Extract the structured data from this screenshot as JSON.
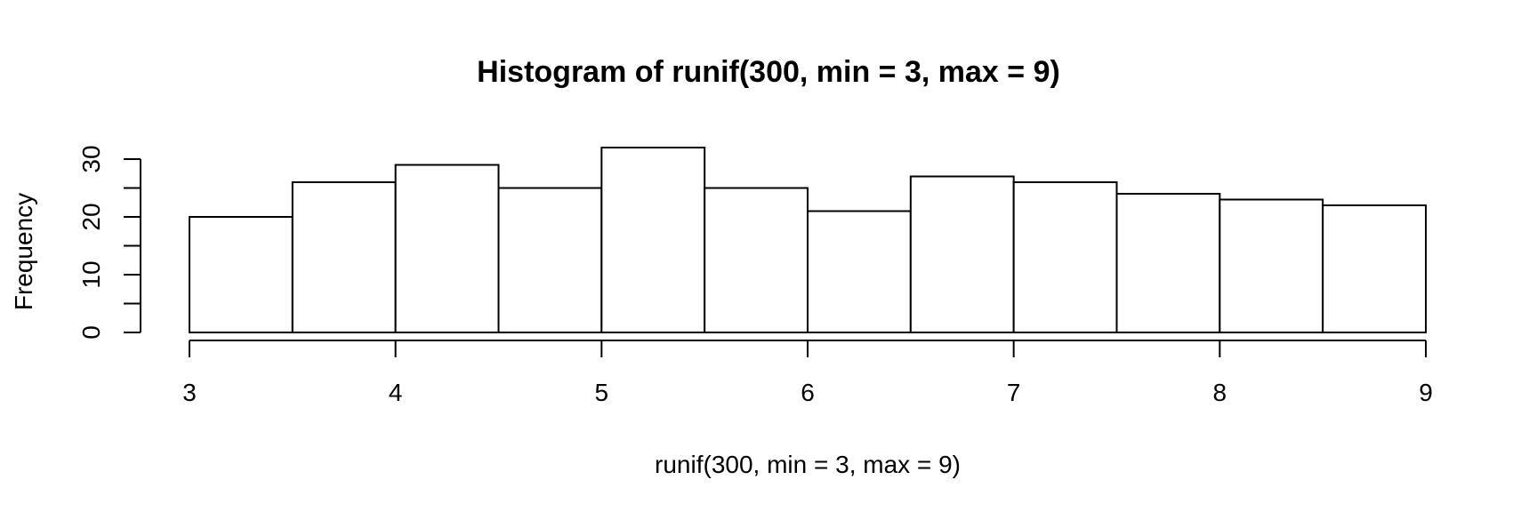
{
  "chart_data": {
    "type": "bar",
    "title": "Histogram of runif(300, min = 3, max = 9)",
    "xlabel": "runif(300, min = 3, max = 9)",
    "ylabel": "Frequency",
    "bins": [
      {
        "start": 3.0,
        "end": 3.5,
        "count": 20
      },
      {
        "start": 3.5,
        "end": 4.0,
        "count": 26
      },
      {
        "start": 4.0,
        "end": 4.5,
        "count": 29
      },
      {
        "start": 4.5,
        "end": 5.0,
        "count": 25
      },
      {
        "start": 5.0,
        "end": 5.5,
        "count": 32
      },
      {
        "start": 5.5,
        "end": 6.0,
        "count": 25
      },
      {
        "start": 6.0,
        "end": 6.5,
        "count": 21
      },
      {
        "start": 6.5,
        "end": 7.0,
        "count": 27
      },
      {
        "start": 7.0,
        "end": 7.5,
        "count": 26
      },
      {
        "start": 7.5,
        "end": 8.0,
        "count": 24
      },
      {
        "start": 8.0,
        "end": 8.5,
        "count": 23
      },
      {
        "start": 8.5,
        "end": 9.0,
        "count": 22
      }
    ],
    "xlim": [
      3,
      9
    ],
    "ylim": [
      0,
      30
    ],
    "x_ticks": [
      "3",
      "4",
      "5",
      "6",
      "7",
      "8",
      "9"
    ],
    "y_ticks": [
      "0",
      "10",
      "20",
      "30"
    ],
    "grid": false,
    "bar_fill": "#ffffff",
    "bar_stroke": "#000000"
  }
}
